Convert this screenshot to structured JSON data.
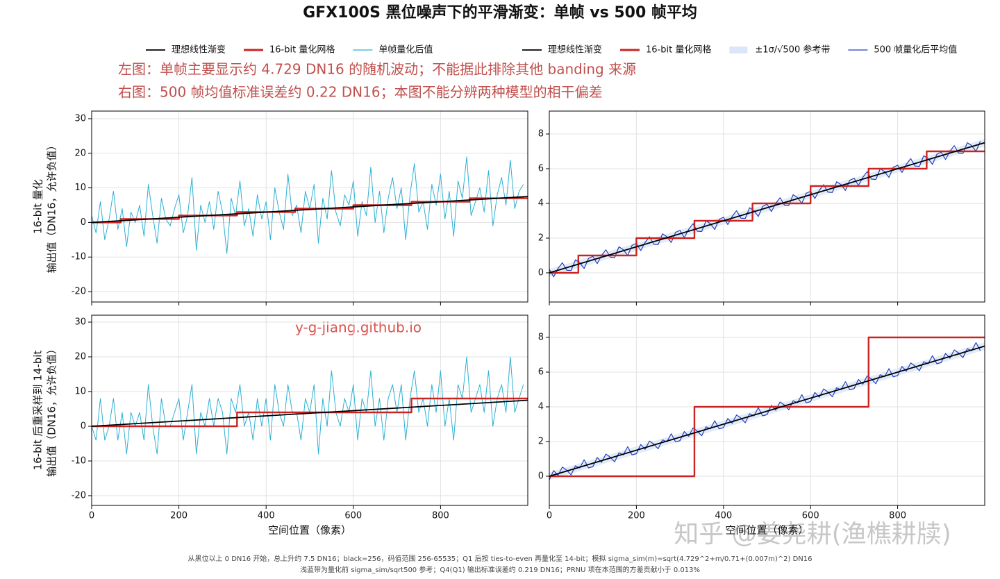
{
  "figure": {
    "title": "GFX100S 黑位噪声下的平滑渐变：单帧 vs 500 帧平均",
    "annotations": [
      "左图：单帧主要显示约 4.729 DN16 的随机波动；不能据此排除其他 banding 来源",
      "右图：500 帧均值标准误差约 0.22 DN16；本图不能分辨两种模型的相干偏差"
    ],
    "watermarks": [
      "y-g-jiang.github.io",
      "知乎 @姜尧耕(渔樵耕牍)"
    ],
    "footnotes": [
      "从黑位以上 0 DN16 开始，总上升约 7.5 DN16；black=256，码值范围 256-65535；Q1 后按 ties-to-even 再量化至 14-bit；模拟 sigma_sim(m)=sqrt(4.729^2+m/0.71+(0.007m)^2) DN16",
      "浅蓝带为量化前 sigma_sim/sqrt500 参考；Q4(Q1) 输出标准误差约 0.219 DN16；PRNU 项在本范围的方差贡献小于 0.013%"
    ]
  },
  "chart_data": [
    {
      "type": "line",
      "ylabel": [
        "16-bit 量化",
        "输出值（DN16，允许负值）"
      ],
      "xlim": [
        0,
        1000
      ],
      "ylim": [
        -23,
        32.2
      ],
      "xticks": [
        0,
        200,
        400,
        600,
        800
      ],
      "yticks": [
        -20,
        -10,
        0,
        10,
        20,
        30
      ],
      "grid": true,
      "xtick_labels": false,
      "x": [
        0,
        10,
        20,
        30,
        40,
        50,
        60,
        70,
        80,
        90,
        100,
        110,
        120,
        130,
        140,
        150,
        160,
        170,
        180,
        190,
        200,
        210,
        220,
        230,
        240,
        250,
        260,
        270,
        280,
        290,
        300,
        310,
        320,
        330,
        340,
        350,
        360,
        370,
        380,
        390,
        400,
        410,
        420,
        430,
        440,
        450,
        460,
        470,
        480,
        490,
        500,
        510,
        520,
        530,
        540,
        550,
        560,
        570,
        580,
        590,
        600,
        610,
        620,
        630,
        640,
        650,
        660,
        670,
        680,
        690,
        700,
        710,
        720,
        730,
        740,
        750,
        760,
        770,
        780,
        790,
        800,
        810,
        820,
        830,
        840,
        850,
        860,
        870,
        880,
        890,
        900,
        910,
        920,
        930,
        940,
        950,
        960,
        970,
        980,
        990
      ],
      "series": [
        {
          "name": "理想线性渐变",
          "kind": "line",
          "color": "#000000",
          "linewidth": 1.8,
          "x": [
            0,
            1000
          ],
          "values": [
            0,
            7.5
          ]
        },
        {
          "name": "16-bit 量化网格",
          "kind": "step",
          "color": "#cc2222",
          "linewidth": 2.4,
          "x": [
            0,
            66.7,
            66.7,
            200,
            200,
            333.3,
            333.3,
            466.7,
            466.7,
            600,
            600,
            733.3,
            733.3,
            866.7,
            866.7,
            1000
          ],
          "values": [
            0,
            0,
            1,
            1,
            2,
            2,
            3,
            3,
            4,
            4,
            5,
            5,
            6,
            6,
            7,
            7
          ]
        },
        {
          "name": "单帧量化后值",
          "kind": "line",
          "color": "#2bb0d4",
          "linewidth": 1,
          "values": [
            2,
            -3,
            6,
            -5,
            1,
            9,
            -2,
            4,
            -7,
            3,
            0,
            5,
            -4,
            11,
            2,
            -6,
            7,
            1,
            -1,
            4,
            8,
            -3,
            2,
            13,
            -8,
            5,
            0,
            6,
            -2,
            9,
            3,
            -9,
            7,
            2,
            12,
            -1,
            4,
            -4,
            8,
            1,
            6,
            -5,
            10,
            3,
            -2,
            14,
            2,
            5,
            -3,
            9,
            4,
            11,
            -6,
            7,
            1,
            15,
            3,
            -1,
            8,
            5,
            12,
            -4,
            6,
            2,
            16,
            0,
            9,
            -3,
            7,
            13,
            4,
            10,
            -5,
            8,
            17,
            3,
            6,
            -2,
            11,
            5,
            14,
            1,
            9,
            -4,
            12,
            7,
            19,
            2,
            6,
            10,
            3,
            15,
            -1,
            8,
            13,
            5,
            18,
            4,
            9,
            11
          ]
        }
      ]
    },
    {
      "type": "line",
      "xlim": [
        0,
        1000
      ],
      "ylim": [
        -1.68,
        9.32
      ],
      "xticks": [
        0,
        200,
        400,
        600,
        800
      ],
      "yticks": [
        0,
        2,
        4,
        6,
        8
      ],
      "grid": true,
      "xtick_labels": false,
      "x": [
        0,
        10,
        20,
        30,
        40,
        50,
        60,
        70,
        80,
        90,
        100,
        110,
        120,
        130,
        140,
        150,
        160,
        170,
        180,
        190,
        200,
        210,
        220,
        230,
        240,
        250,
        260,
        270,
        280,
        290,
        300,
        310,
        320,
        330,
        340,
        350,
        360,
        370,
        380,
        390,
        400,
        410,
        420,
        430,
        440,
        450,
        460,
        470,
        480,
        490,
        500,
        510,
        520,
        530,
        540,
        550,
        560,
        570,
        580,
        590,
        600,
        610,
        620,
        630,
        640,
        650,
        660,
        670,
        680,
        690,
        700,
        710,
        720,
        730,
        740,
        750,
        760,
        770,
        780,
        790,
        800,
        810,
        820,
        830,
        840,
        850,
        860,
        870,
        880,
        890,
        900,
        910,
        920,
        930,
        940,
        950,
        960,
        970,
        980,
        990
      ],
      "series": [
        {
          "name": "理想线性渐变",
          "kind": "line",
          "color": "#000000",
          "linewidth": 1.8,
          "x": [
            0,
            1000
          ],
          "values": [
            0,
            7.5
          ]
        },
        {
          "name": "16-bit 量化网格",
          "kind": "step",
          "color": "#cc2222",
          "linewidth": 2.4,
          "x": [
            0,
            66.7,
            66.7,
            200,
            200,
            333.3,
            333.3,
            466.7,
            466.7,
            600,
            600,
            733.3,
            733.3,
            866.7,
            866.7,
            1000
          ],
          "values": [
            0,
            0,
            1,
            1,
            2,
            2,
            3,
            3,
            4,
            4,
            5,
            5,
            6,
            6,
            7,
            7
          ]
        },
        {
          "name": "±1σ/√500 参考带",
          "kind": "band",
          "color": "#dbe6f8",
          "x": [
            0,
            1000
          ],
          "lower": [
            -0.22,
            7.28
          ],
          "upper": [
            0.22,
            7.72
          ]
        },
        {
          "name": "500 帧量化后平均值",
          "kind": "line",
          "color": "#1f3fbf",
          "linewidth": 1.2,
          "values": [
            0.2,
            -0.23,
            0.25,
            0.58,
            0.15,
            0.13,
            0.75,
            0.58,
            0.25,
            0.83,
            0.95,
            0.53,
            1.0,
            1.33,
            0.9,
            0.88,
            1.5,
            1.33,
            1.0,
            1.58,
            1.7,
            1.28,
            1.75,
            2.08,
            1.65,
            1.63,
            2.25,
            2.08,
            1.75,
            2.33,
            2.45,
            2.03,
            2.5,
            2.83,
            2.4,
            2.38,
            3.0,
            2.83,
            2.5,
            3.08,
            3.2,
            2.78,
            3.25,
            3.58,
            3.15,
            3.13,
            3.75,
            3.58,
            3.25,
            3.83,
            3.95,
            3.53,
            4.0,
            4.33,
            3.9,
            3.88,
            4.5,
            4.33,
            4.0,
            4.58,
            4.7,
            4.28,
            4.75,
            5.08,
            4.65,
            4.63,
            5.25,
            5.08,
            4.75,
            5.33,
            5.45,
            5.03,
            5.5,
            5.83,
            5.4,
            5.38,
            6.0,
            5.83,
            5.5,
            6.08,
            6.2,
            5.78,
            6.25,
            6.58,
            6.15,
            6.13,
            6.75,
            6.58,
            6.25,
            6.83,
            6.95,
            6.53,
            7.0,
            7.33,
            6.9,
            6.88,
            7.5,
            7.33,
            7.0,
            7.58
          ]
        }
      ]
    },
    {
      "type": "line",
      "ylabel": [
        "16-bit 后重采样到 14-bit",
        "输出值（DN16，允许负值）"
      ],
      "xlabel": "空间位置（像素）",
      "xlim": [
        0,
        1000
      ],
      "ylim": [
        -22.8,
        32
      ],
      "xticks": [
        0,
        200,
        400,
        600,
        800
      ],
      "yticks": [
        -20,
        -10,
        0,
        10,
        20,
        30
      ],
      "grid": true,
      "xtick_labels": true,
      "x": [
        0,
        10,
        20,
        30,
        40,
        50,
        60,
        70,
        80,
        90,
        100,
        110,
        120,
        130,
        140,
        150,
        160,
        170,
        180,
        190,
        200,
        210,
        220,
        230,
        240,
        250,
        260,
        270,
        280,
        290,
        300,
        310,
        320,
        330,
        340,
        350,
        360,
        370,
        380,
        390,
        400,
        410,
        420,
        430,
        440,
        450,
        460,
        470,
        480,
        490,
        500,
        510,
        520,
        530,
        540,
        550,
        560,
        570,
        580,
        590,
        600,
        610,
        620,
        630,
        640,
        650,
        660,
        670,
        680,
        690,
        700,
        710,
        720,
        730,
        740,
        750,
        760,
        770,
        780,
        790,
        800,
        810,
        820,
        830,
        840,
        850,
        860,
        870,
        880,
        890,
        900,
        910,
        920,
        930,
        940,
        950,
        960,
        970,
        980,
        990
      ],
      "series": [
        {
          "kind": "line",
          "color": "#000000",
          "linewidth": 1.8,
          "x": [
            0,
            1000
          ],
          "values": [
            0,
            7.5
          ]
        },
        {
          "kind": "step",
          "color": "#cc2222",
          "linewidth": 2.4,
          "x": [
            0,
            333.3,
            333.3,
            733.3,
            733.3,
            1000
          ],
          "values": [
            0,
            0,
            4,
            4,
            8,
            8
          ]
        },
        {
          "kind": "line",
          "color": "#2bb0d4",
          "linewidth": 1,
          "values": [
            0,
            -4,
            8,
            -4,
            0,
            8,
            -4,
            4,
            -8,
            4,
            0,
            4,
            -4,
            12,
            0,
            -8,
            8,
            0,
            0,
            4,
            8,
            -4,
            4,
            12,
            -8,
            4,
            0,
            8,
            0,
            8,
            4,
            -8,
            8,
            4,
            12,
            0,
            4,
            -4,
            8,
            0,
            8,
            -4,
            12,
            4,
            0,
            12,
            4,
            4,
            -4,
            8,
            4,
            12,
            -8,
            8,
            0,
            16,
            4,
            0,
            8,
            4,
            12,
            -4,
            8,
            4,
            16,
            0,
            8,
            -4,
            8,
            12,
            4,
            12,
            -4,
            8,
            16,
            4,
            8,
            0,
            12,
            4,
            16,
            0,
            8,
            -4,
            12,
            8,
            20,
            4,
            8,
            12,
            4,
            16,
            0,
            8,
            12,
            4,
            20,
            4,
            8,
            12
          ]
        }
      ]
    },
    {
      "type": "line",
      "xlabel": "空间位置（像素）",
      "xlim": [
        0,
        1000
      ],
      "ylim": [
        -1.68,
        9.28
      ],
      "xticks": [
        0,
        200,
        400,
        600,
        800
      ],
      "yticks": [
        0,
        2,
        4,
        6,
        8
      ],
      "grid": true,
      "xtick_labels": true,
      "x": [
        0,
        10,
        20,
        30,
        40,
        50,
        60,
        70,
        80,
        90,
        100,
        110,
        120,
        130,
        140,
        150,
        160,
        170,
        180,
        190,
        200,
        210,
        220,
        230,
        240,
        250,
        260,
        270,
        280,
        290,
        300,
        310,
        320,
        330,
        340,
        350,
        360,
        370,
        380,
        390,
        400,
        410,
        420,
        430,
        440,
        450,
        460,
        470,
        480,
        490,
        500,
        510,
        520,
        530,
        540,
        550,
        560,
        570,
        580,
        590,
        600,
        610,
        620,
        630,
        640,
        650,
        660,
        670,
        680,
        690,
        700,
        710,
        720,
        730,
        740,
        750,
        760,
        770,
        780,
        790,
        800,
        810,
        820,
        830,
        840,
        850,
        860,
        870,
        880,
        890,
        900,
        910,
        920,
        930,
        940,
        950,
        960,
        970,
        980,
        990
      ],
      "series": [
        {
          "kind": "line",
          "color": "#000000",
          "linewidth": 1.8,
          "x": [
            0,
            1000
          ],
          "values": [
            0,
            7.5
          ]
        },
        {
          "kind": "step",
          "color": "#cc2222",
          "linewidth": 2.4,
          "x": [
            0,
            333.3,
            333.3,
            733.3,
            733.3,
            1000
          ],
          "values": [
            0,
            0,
            4,
            4,
            8,
            8
          ]
        },
        {
          "kind": "band",
          "color": "#dbe6f8",
          "x": [
            0,
            1000
          ],
          "lower": [
            -0.22,
            7.28
          ],
          "upper": [
            0.22,
            7.72
          ]
        },
        {
          "kind": "line",
          "color": "#1f3fbf",
          "linewidth": 1.2,
          "values": [
            -0.2,
            0.33,
            0.05,
            0.53,
            0.35,
            0.08,
            0.6,
            0.48,
            0.95,
            0.48,
            0.55,
            1.08,
            0.8,
            1.28,
            1.1,
            0.83,
            1.35,
            1.23,
            1.7,
            1.23,
            1.3,
            1.83,
            1.55,
            2.03,
            1.85,
            1.58,
            2.1,
            1.98,
            2.45,
            1.98,
            2.05,
            2.58,
            2.3,
            2.78,
            2.6,
            2.33,
            2.85,
            2.73,
            3.2,
            2.73,
            2.8,
            3.33,
            3.05,
            3.53,
            3.35,
            3.08,
            3.6,
            3.48,
            3.95,
            3.48,
            3.55,
            4.08,
            3.8,
            4.28,
            4.1,
            3.83,
            4.35,
            4.23,
            4.7,
            4.23,
            4.3,
            4.83,
            4.55,
            5.03,
            4.85,
            4.58,
            5.1,
            4.98,
            5.45,
            4.98,
            5.05,
            5.58,
            5.3,
            5.78,
            5.6,
            5.33,
            5.85,
            5.73,
            6.2,
            5.73,
            5.8,
            6.33,
            6.05,
            6.53,
            6.35,
            6.08,
            6.6,
            6.48,
            6.95,
            6.48,
            6.55,
            7.08,
            6.8,
            7.28,
            7.1,
            6.83,
            7.35,
            7.23,
            7.7,
            7.23
          ]
        }
      ]
    }
  ]
}
